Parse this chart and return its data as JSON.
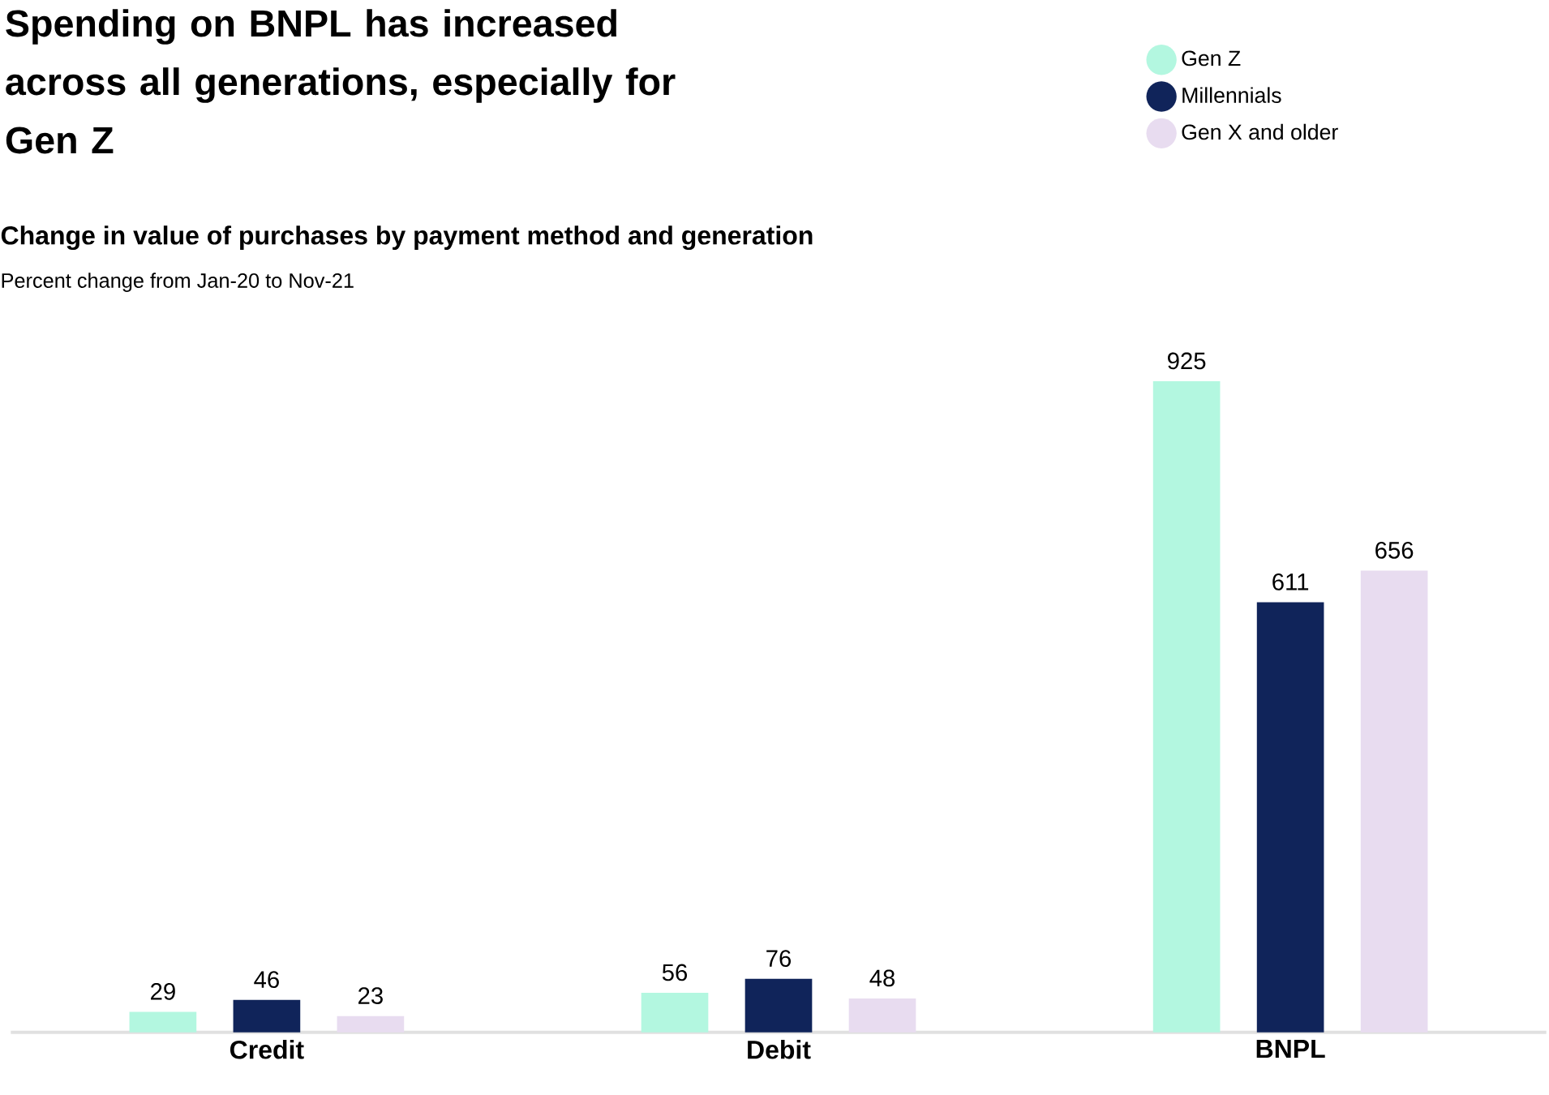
{
  "chart_data": {
    "type": "bar",
    "title": "Spending on BNPL has increased across all generations, especially for Gen Z",
    "subtitle": "Change in value of purchases by payment method and generation",
    "annotations": [
      "Percent change from Jan-20 to Nov-21"
    ],
    "categories": [
      "Credit",
      "Debit",
      "BNPL"
    ],
    "series": [
      {
        "name": "Gen Z",
        "color": "#b3f7e0",
        "values": [
          29,
          56,
          925
        ]
      },
      {
        "name": "Millennials",
        "color": "#10245a",
        "values": [
          46,
          76,
          611
        ]
      },
      {
        "name": "Gen X and older",
        "color": "#e8dcf0",
        "values": [
          23,
          48,
          656
        ]
      }
    ],
    "data_labels": true,
    "legend": "top right"
  }
}
